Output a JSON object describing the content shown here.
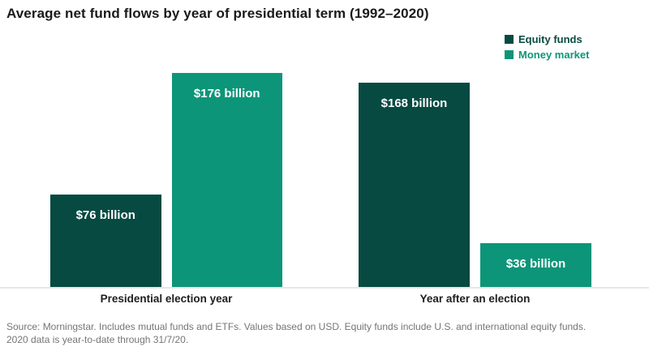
{
  "title": "Average net fund flows by year of presidential term (1992–2020)",
  "legend": {
    "items": [
      {
        "label": "Equity funds",
        "color": "#074a41"
      },
      {
        "label": "Money market",
        "color": "#0d9579"
      }
    ]
  },
  "chart_data": {
    "type": "bar",
    "title": "Average net fund flows by year of presidential term (1992–2020)",
    "categories": [
      "Presidential election year",
      "Year after an election"
    ],
    "series": [
      {
        "name": "Equity funds",
        "color": "#074a41",
        "values": [
          76,
          168
        ],
        "value_labels": [
          "$76 billion",
          "$168 billion"
        ]
      },
      {
        "name": "Money market",
        "color": "#0d9579",
        "values": [
          176,
          36
        ],
        "value_labels": [
          "$176 billion",
          "$36 billion"
        ]
      }
    ],
    "unit": "USD billions",
    "ylim": [
      0,
      236
    ],
    "grid": false,
    "y_axis_visible": false,
    "legend_position": "top-right",
    "value_labels_inside_bars": true
  },
  "source": {
    "line1": "Source: Morningstar. Includes mutual funds and ETFs. Values based on USD. Equity funds include U.S. and international equity funds.",
    "line2": "2020 data is year-to-date through 31/7/20."
  }
}
